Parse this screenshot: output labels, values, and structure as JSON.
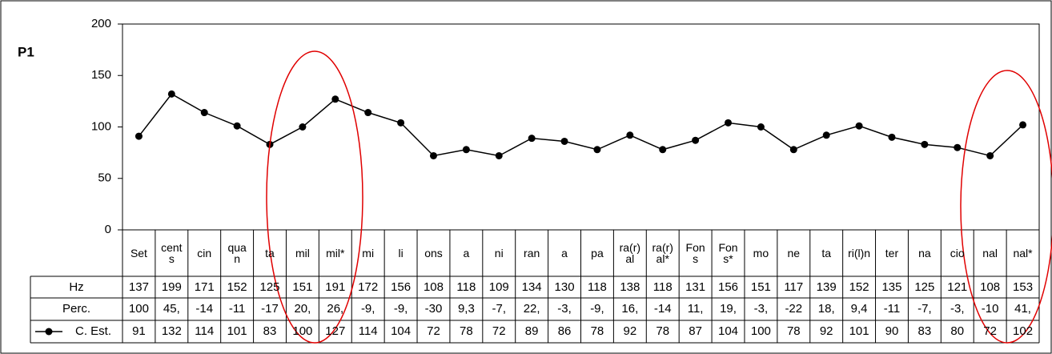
{
  "chart_data": {
    "type": "line",
    "y_label": "P1",
    "categories": [
      "Set",
      "cents",
      "cin",
      "quan",
      "ta",
      "mil",
      "mil*",
      "mi",
      "li",
      "ons",
      "a",
      "ni",
      "ran",
      "a",
      "pa",
      "ra(r)al",
      "ra(r)al*",
      "Fons",
      "Fons*",
      "mo",
      "ne",
      "ta",
      "ri(l)n",
      "ter",
      "na",
      "cio",
      "nal",
      "nal*"
    ],
    "series": [
      {
        "name": "C. Est.",
        "color": "#000000",
        "values": [
          91,
          132,
          114,
          101,
          83,
          100,
          127,
          114,
          104,
          72,
          78,
          72,
          89,
          86,
          78,
          92,
          78,
          87,
          104,
          100,
          78,
          92,
          101,
          90,
          83,
          80,
          72,
          102
        ]
      }
    ],
    "ylim": [
      0,
      200
    ],
    "yticks": [
      0,
      50,
      100,
      150,
      200
    ],
    "grid": false,
    "table_rows": [
      {
        "name": "Hz",
        "values": [
          137,
          199,
          171,
          152,
          125,
          151,
          191,
          172,
          156,
          108,
          118,
          109,
          134,
          130,
          118,
          138,
          118,
          131,
          156,
          151,
          117,
          139,
          152,
          135,
          125,
          121,
          108,
          153
        ]
      },
      {
        "name": "Perc.",
        "values": [
          "100",
          "45,",
          "-14",
          "-11",
          "-17",
          "20,",
          "26,",
          "-9,",
          "-9,",
          "-30",
          "9,3",
          "-7,",
          "22,",
          "-3,",
          "-9,",
          "16,",
          "-14",
          "11,",
          "19,",
          "-3,",
          "-22",
          "18,",
          "9,4",
          "-11",
          "-7,",
          "-3,",
          "-10",
          "41,"
        ]
      }
    ]
  }
}
